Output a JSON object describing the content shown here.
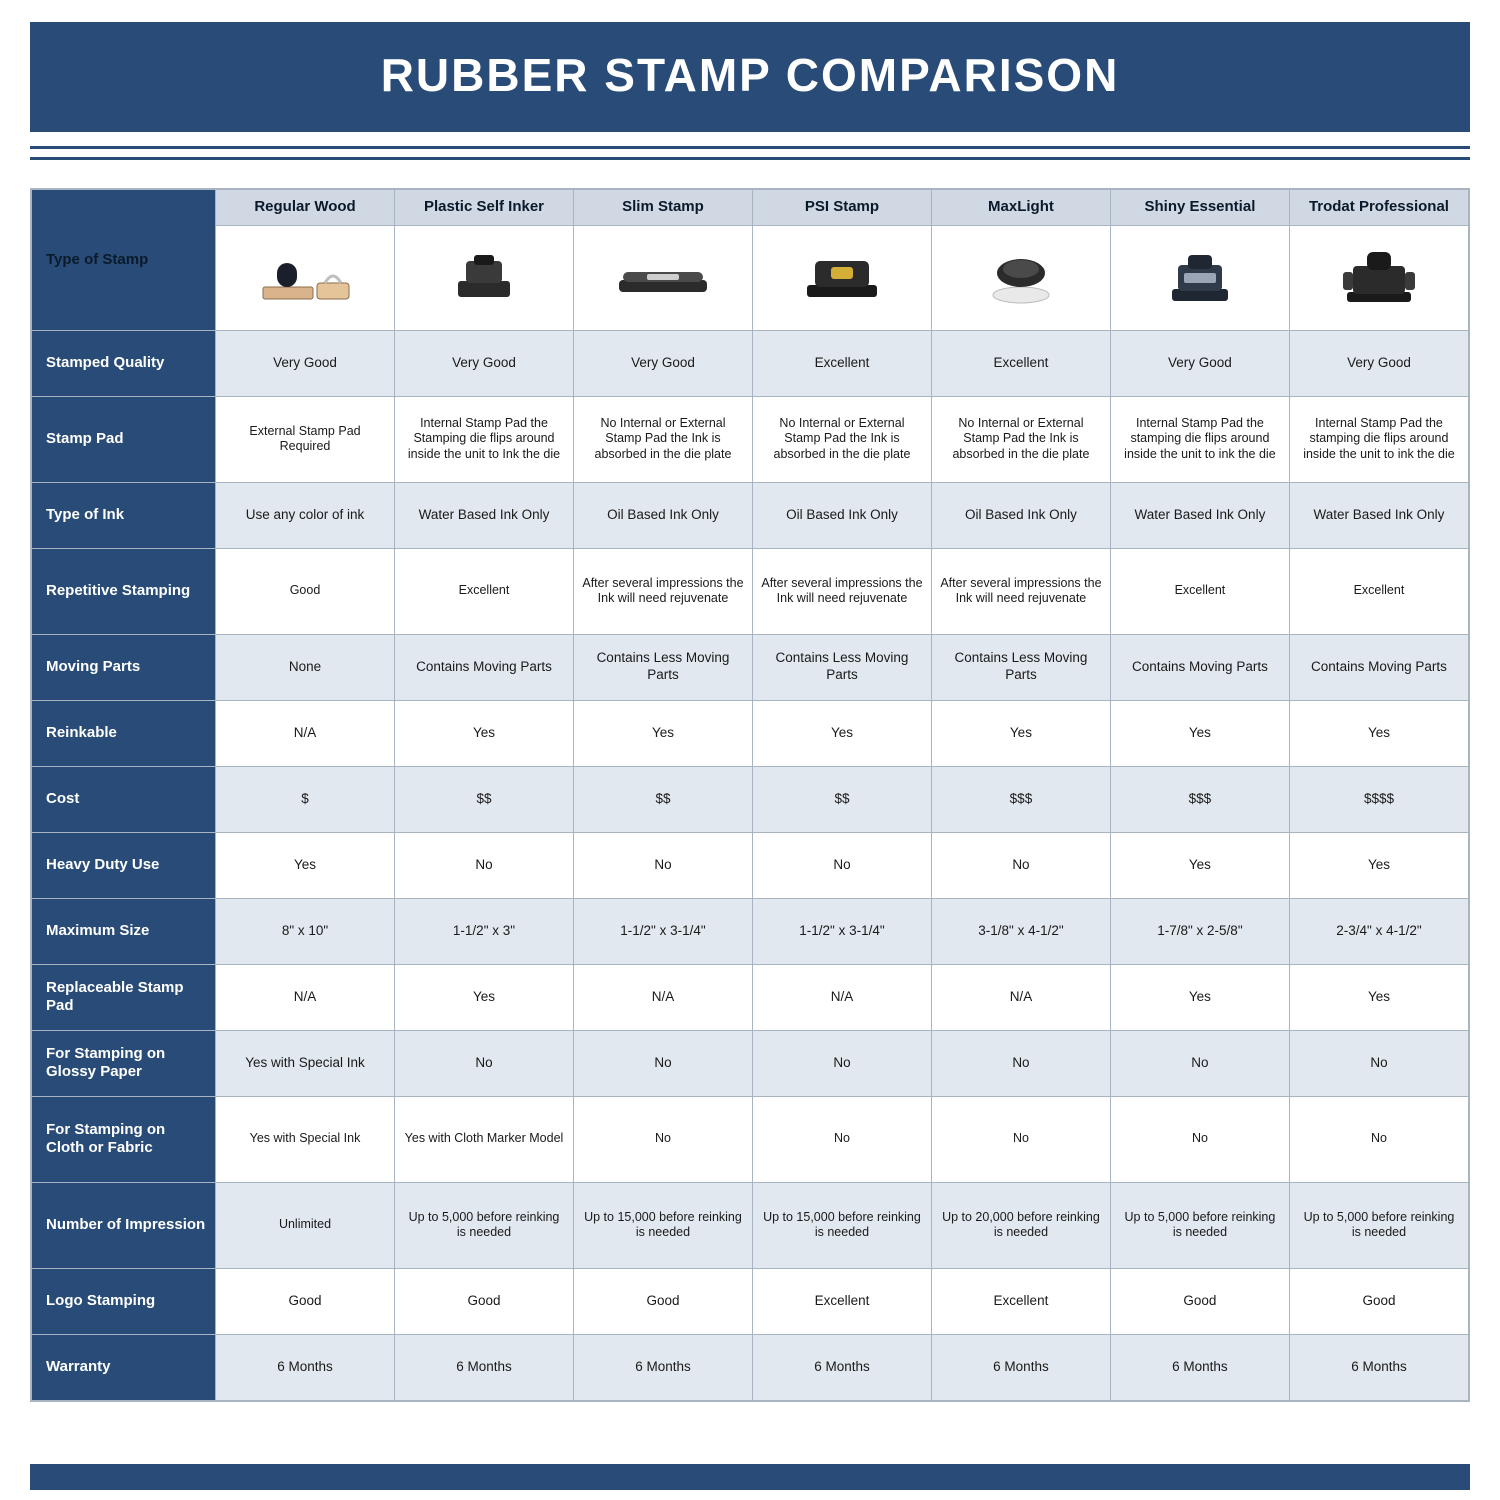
{
  "title": "RUBBER STAMP COMPARISON",
  "colors": {
    "brand": "#284c77",
    "header_tint": "#cfd8e3",
    "row_tint": "#e2e8ef",
    "border": "#a9b4c2",
    "white": "#ffffff",
    "text": "#1a1a1a"
  },
  "table": {
    "type": "comparison-table",
    "columns": [
      "Regular Wood",
      "Plastic Self Inker",
      "Slim Stamp",
      "PSI Stamp",
      "MaxLight",
      "Shiny Essential",
      "Trodat Professional"
    ],
    "row_headers": [
      "Type of Stamp",
      "Stamped Quality",
      "Stamp Pad",
      "Type of Ink",
      "Repetitive Stamping",
      "Moving Parts",
      "Reinkable",
      "Cost",
      "Heavy Duty Use",
      "Maximum Size",
      "Replaceable Stamp Pad",
      "For Stamping on Glossy Paper",
      "For Stamping on Cloth or Fabric",
      "Number of Impression",
      "Logo Stamping",
      "Warranty"
    ],
    "rows": {
      "Stamped Quality": [
        "Very Good",
        "Very Good",
        "Very Good",
        "Excellent",
        "Excellent",
        "Very Good",
        "Very Good"
      ],
      "Stamp Pad": [
        "External Stamp Pad Required",
        "Internal Stamp Pad the Stamping die flips around inside the unit to Ink the die",
        "No Internal or External Stamp Pad the Ink is absorbed in the die plate",
        "No Internal or External Stamp Pad the Ink is absorbed in the die plate",
        "No Internal or External Stamp Pad the Ink is absorbed in the die plate",
        "Internal Stamp Pad the stamping die flips around inside the unit to ink the die",
        "Internal Stamp Pad the stamping die flips around inside the unit to ink the die"
      ],
      "Type of Ink": [
        "Use any color of ink",
        "Water Based Ink Only",
        "Oil Based Ink Only",
        "Oil Based Ink Only",
        "Oil Based Ink Only",
        "Water Based Ink Only",
        "Water Based Ink Only"
      ],
      "Repetitive Stamping": [
        "Good",
        "Excellent",
        "After several impressions the Ink will need rejuvenate",
        "After several impressions the Ink will need rejuvenate",
        "After several impressions the Ink will need rejuvenate",
        "Excellent",
        "Excellent"
      ],
      "Moving Parts": [
        "None",
        "Contains Moving Parts",
        "Contains Less Moving Parts",
        "Contains Less Moving Parts",
        "Contains Less Moving Parts",
        "Contains Moving Parts",
        "Contains Moving Parts"
      ],
      "Reinkable": [
        "N/A",
        "Yes",
        "Yes",
        "Yes",
        "Yes",
        "Yes",
        "Yes"
      ],
      "Cost": [
        "$",
        "$$",
        "$$",
        "$$",
        "$$$",
        "$$$",
        "$$$$"
      ],
      "Heavy Duty Use": [
        "Yes",
        "No",
        "No",
        "No",
        "No",
        "Yes",
        "Yes"
      ],
      "Maximum Size": [
        "8\" x 10\"",
        "1-1/2\" x 3\"",
        "1-1/2\" x 3-1/4\"",
        "1-1/2\" x 3-1/4\"",
        "3-1/8\" x 4-1/2\"",
        "1-7/8\" x 2-5/8\"",
        "2-3/4\" x 4-1/2\""
      ],
      "Replaceable Stamp Pad": [
        "N/A",
        "Yes",
        "N/A",
        "N/A",
        "N/A",
        "Yes",
        "Yes"
      ],
      "For Stamping on Glossy Paper": [
        "Yes with Special Ink",
        "No",
        "No",
        "No",
        "No",
        "No",
        "No"
      ],
      "For Stamping on Cloth or Fabric": [
        "Yes with Special Ink",
        "Yes with Cloth Marker Model",
        "No",
        "No",
        "No",
        "No",
        "No"
      ],
      "Number of Impression": [
        "Unlimited",
        "Up to 5,000 before reinking is needed",
        "Up to 15,000 before reinking is needed",
        "Up to 15,000 before reinking is needed",
        "Up to 20,000 before reinking is needed",
        "Up to 5,000 before reinking is needed",
        "Up to 5,000 before reinking is needed"
      ],
      "Logo Stamping": [
        "Good",
        "Good",
        "Good",
        "Excellent",
        "Excellent",
        "Good",
        "Good"
      ],
      "Warranty": [
        "6 Months",
        "6 Months",
        "6 Months",
        "6 Months",
        "6 Months",
        "6 Months",
        "6 Months"
      ]
    },
    "column_widths_pct": [
      12.8,
      12.45,
      12.45,
      12.45,
      12.45,
      12.45,
      12.45,
      12.45
    ],
    "header_bg": "#cfd8e3",
    "rowhdr_bg": "#284c77",
    "alt_row_bg": "#e2e8ef",
    "border_color": "#a9b4c2",
    "font_size_cell_pt": 13.5,
    "font_size_header_pt": 15
  },
  "icons": {
    "regular_wood": "wood-handle-stamp",
    "plastic_self_inker": "self-inking-stamp",
    "slim_stamp": "slim-stamp",
    "psi_stamp": "psi-stamp",
    "maxlight": "round-preink-stamp",
    "shiny_essential": "shiny-stamp",
    "trodat_professional": "trodat-stamp"
  }
}
